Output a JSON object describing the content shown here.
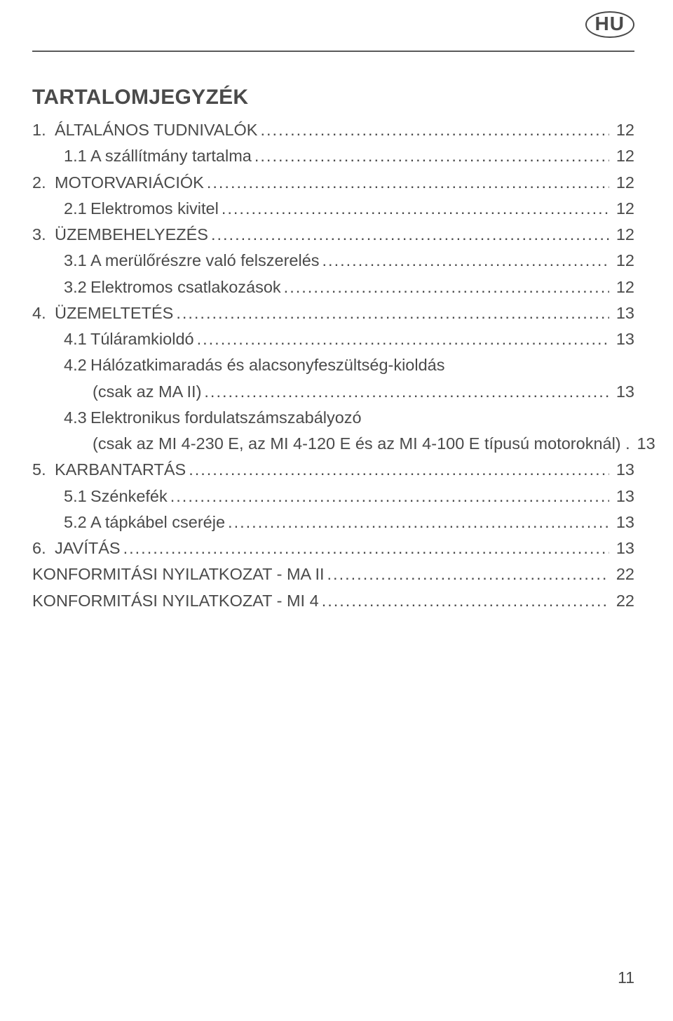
{
  "language_badge": "HU",
  "title": "TARTALOMJEGYZÉK",
  "page_number": "11",
  "colors": {
    "text": "#4a4a4a",
    "rule": "#5a5a5a",
    "background": "#ffffff"
  },
  "toc": [
    {
      "level": 1,
      "num": "1.",
      "text": "ÁLTALÁNOS TUDNIVALÓK",
      "page": "12"
    },
    {
      "level": 2,
      "num": "1.1",
      "text": "A szállítmány tartalma",
      "page": "12"
    },
    {
      "level": 1,
      "num": "2.",
      "text": "MOTORVARIÁCIÓK",
      "page": "12"
    },
    {
      "level": 2,
      "num": "2.1",
      "text": "Elektromos kivitel",
      "page": "12"
    },
    {
      "level": 1,
      "num": "3.",
      "text": "ÜZEMBEHELYEZÉS",
      "page": "12"
    },
    {
      "level": 2,
      "num": "3.1",
      "text": "A merülőrészre való felszerelés",
      "page": "12"
    },
    {
      "level": 2,
      "num": "3.2",
      "text": "Elektromos csatlakozások",
      "page": "12"
    },
    {
      "level": 1,
      "num": "4.",
      "text": "ÜZEMELTETÉS",
      "page": "13"
    },
    {
      "level": 2,
      "num": "4.1",
      "text": "Túláramkioldó",
      "page": "13"
    },
    {
      "level": 2,
      "num": "4.2",
      "text": "Hálózatkimaradás és alacsonyfeszültség-kioldás",
      "page": ""
    },
    {
      "level": 3,
      "num": "",
      "text": "(csak az MA II)",
      "page": "13"
    },
    {
      "level": 2,
      "num": "4.3",
      "text": "Elektronikus fordulatszámszabályozó",
      "page": ""
    },
    {
      "level": 3,
      "num": "",
      "text": "(csak az MI 4-230 E, az MI 4-120 E és az MI 4-100 E típusú motoroknál) .",
      "page": "13",
      "nodots": true
    },
    {
      "level": 1,
      "num": "5.",
      "text": "KARBANTARTÁS",
      "page": "13"
    },
    {
      "level": 2,
      "num": "5.1",
      "text": "Szénkefék",
      "page": "13"
    },
    {
      "level": 2,
      "num": "5.2",
      "text": "A tápkábel cseréje",
      "page": "13"
    },
    {
      "level": 1,
      "num": "6.",
      "text": "JAVÍTÁS",
      "page": "13"
    },
    {
      "level": 0,
      "num": "",
      "text": "KONFORMITÁSI NYILATKOZAT - MA II",
      "page": "22"
    },
    {
      "level": 0,
      "num": "",
      "text": "KONFORMITÁSI NYILATKOZAT - MI 4",
      "page": "22"
    }
  ]
}
